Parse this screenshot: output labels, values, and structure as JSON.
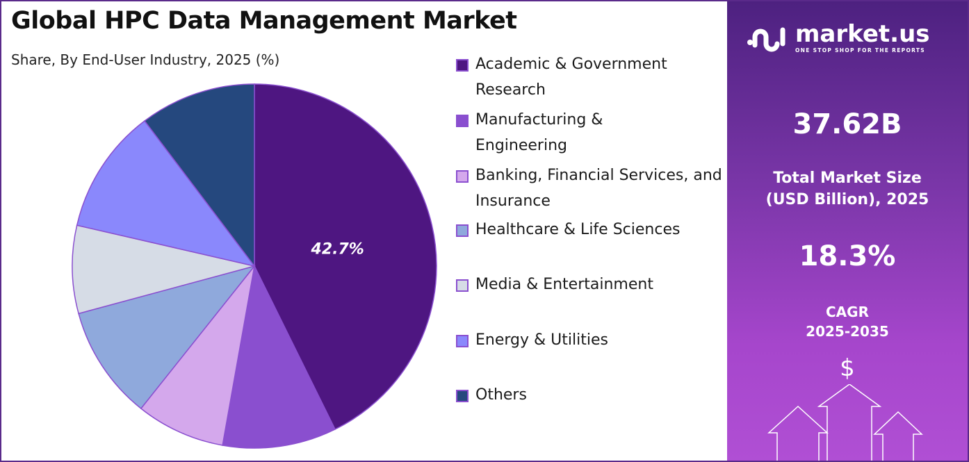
{
  "title": "Global HPC Data Management Market",
  "subtitle": "Share, By End-User Industry, 2025 (%)",
  "chart_data": {
    "type": "pie",
    "title": "Global HPC Data Management Market",
    "subtitle": "Share, By End-User Industry, 2025 (%)",
    "categories": [
      "Academic & Government Research",
      "Manufacturing & Engineering",
      "Banking, Financial Services, and Insurance",
      "Healthcare & Life Sciences",
      "Media & Entertainment",
      "Energy & Utilities",
      "Others"
    ],
    "values": [
      42.7,
      10.1,
      7.9,
      10.1,
      7.8,
      11.1,
      10.3
    ],
    "colors": [
      "#4e1681",
      "#8a4fcf",
      "#d4a8ec",
      "#8fa9dc",
      "#d6dce6",
      "#8a88fc",
      "#25487e"
    ],
    "data_labels": [
      "42.7%",
      "",
      "",
      "",
      "",
      "",
      ""
    ],
    "legend_position": "right"
  },
  "legend": [
    "Academic & Government Research",
    "Manufacturing & Engineering",
    "Banking, Financial Services, and Insurance",
    "Healthcare & Life Sciences",
    "Media & Entertainment",
    "Energy & Utilities",
    "Others"
  ],
  "panel": {
    "logo": "market.us",
    "tagline": "ONE STOP SHOP FOR THE REPORTS",
    "market_size": "37.62B",
    "market_size_label_1": "Total Market Size",
    "market_size_label_2": "(USD Billion), 2025",
    "cagr": "18.3%",
    "cagr_label_1": "CAGR",
    "cagr_label_2": "2025-2035",
    "dollar": "$"
  }
}
